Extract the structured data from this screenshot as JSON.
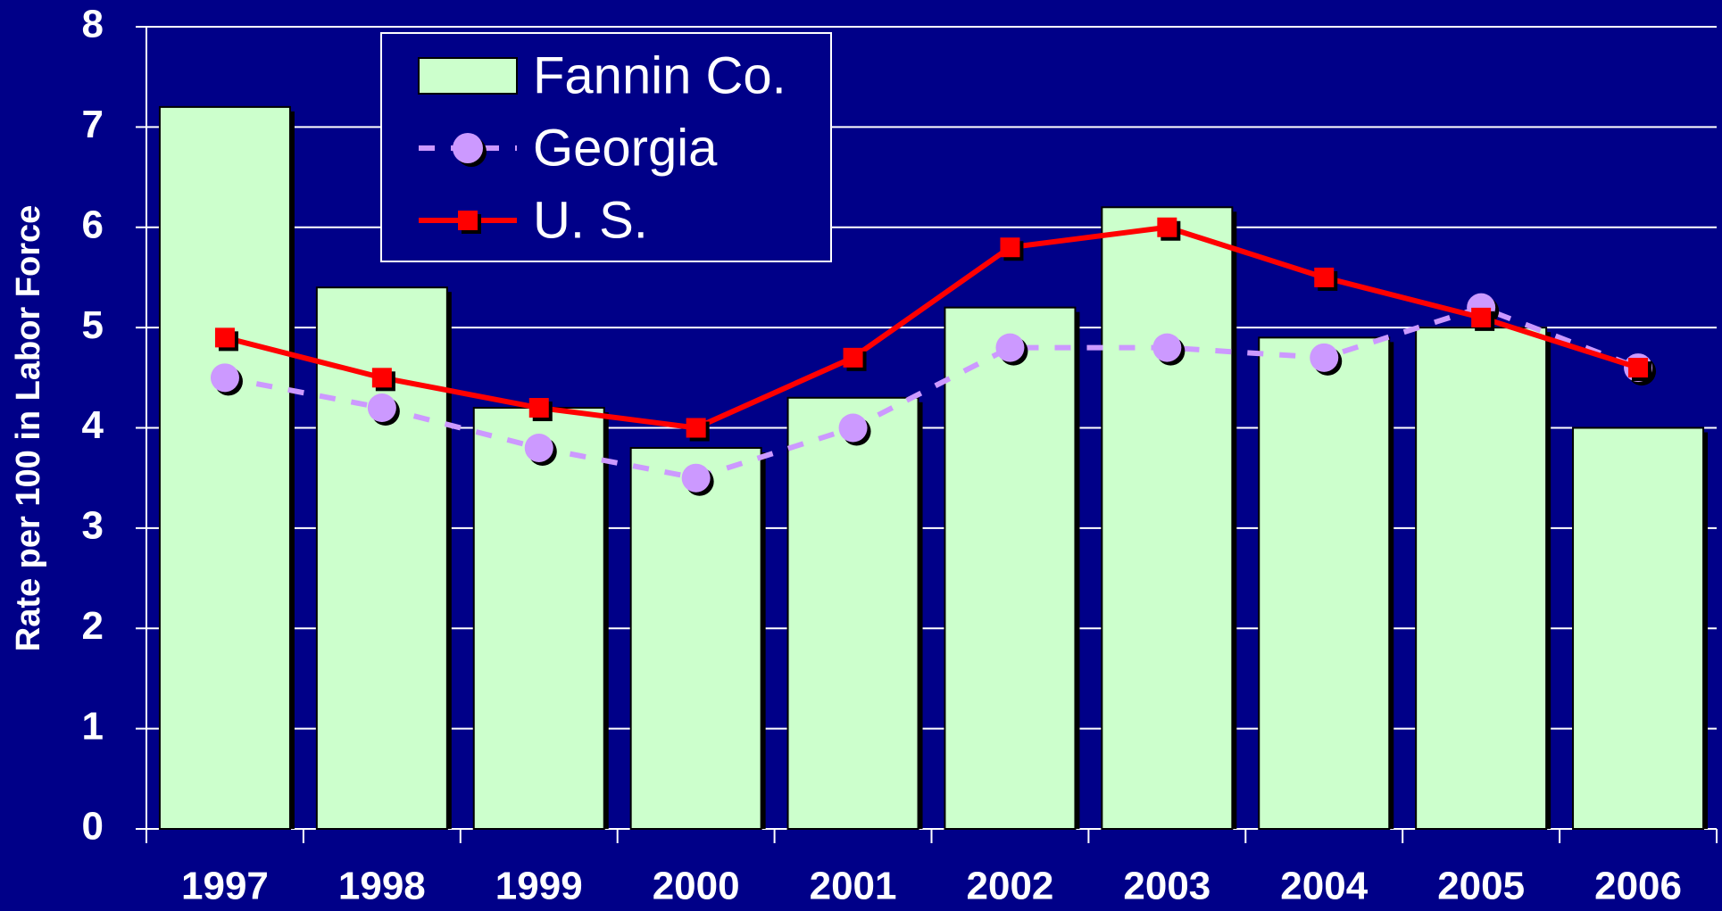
{
  "chart_data": {
    "type": "bar",
    "y_label": "Rate per 100 in Labor Force",
    "categories": [
      "1997",
      "1998",
      "1999",
      "2000",
      "2001",
      "2002",
      "2003",
      "2004",
      "2005",
      "2006"
    ],
    "series": [
      {
        "name": "Fannin Co.",
        "type": "bar",
        "color": "#ccffcc",
        "values": [
          7.2,
          5.4,
          4.2,
          3.8,
          4.3,
          5.2,
          6.2,
          4.9,
          5.0,
          4.0
        ]
      },
      {
        "name": "Georgia",
        "type": "line",
        "color": "#cc99ff",
        "dashed": true,
        "marker": "circle",
        "values": [
          4.5,
          4.2,
          3.8,
          3.5,
          4.0,
          4.8,
          4.8,
          4.7,
          5.2,
          4.6
        ]
      },
      {
        "name": "U. S.",
        "type": "line",
        "color": "#ff0000",
        "dashed": false,
        "marker": "square",
        "values": [
          4.9,
          4.5,
          4.2,
          4.0,
          4.7,
          5.8,
          6.0,
          5.5,
          5.1,
          4.6
        ]
      }
    ],
    "ylim": [
      0,
      8
    ],
    "yticks": [
      0,
      1,
      2,
      3,
      4,
      5,
      6,
      7,
      8
    ],
    "grid": true,
    "legend": "top-left"
  }
}
